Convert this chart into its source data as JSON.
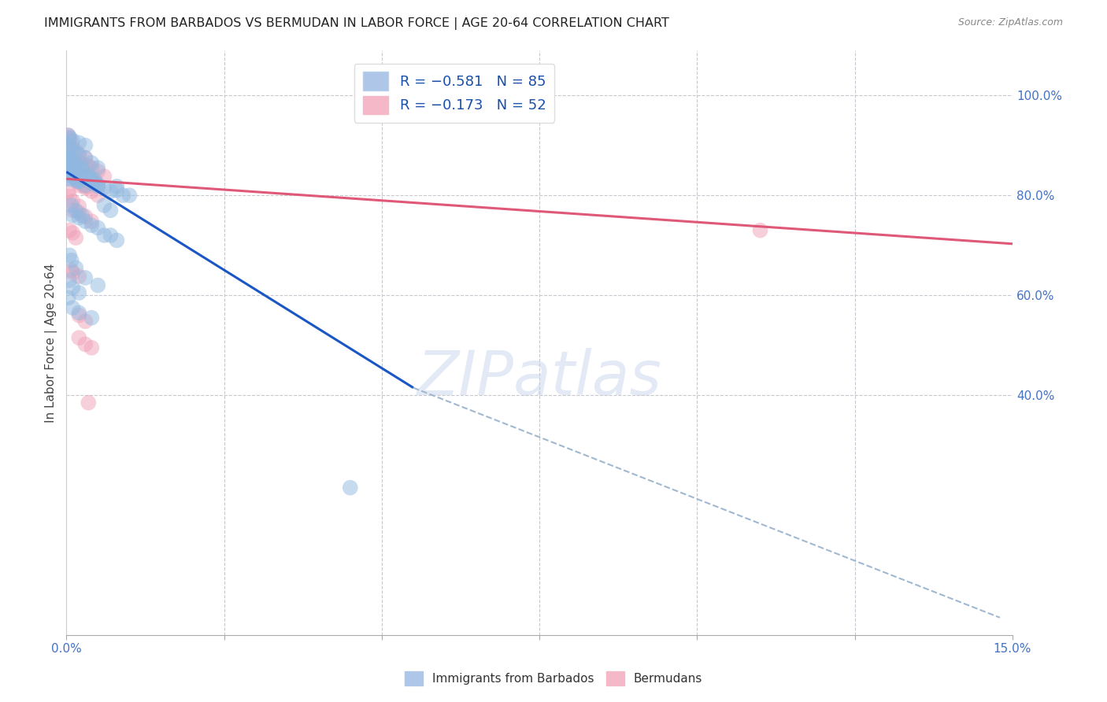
{
  "title": "IMMIGRANTS FROM BARBADOS VS BERMUDAN IN LABOR FORCE | AGE 20-64 CORRELATION CHART",
  "source": "Source: ZipAtlas.com",
  "ylabel": "In Labor Force | Age 20-64",
  "watermark": "ZIPatlas",
  "blue_scatter_x": [
    0.0002,
    0.0003,
    0.0004,
    0.0005,
    0.0006,
    0.0007,
    0.0008,
    0.0009,
    0.001,
    0.0012,
    0.0014,
    0.0016,
    0.0018,
    0.002,
    0.0022,
    0.0025,
    0.003,
    0.0035,
    0.004,
    0.0045,
    0.005,
    0.006,
    0.007,
    0.008,
    0.009,
    0.01,
    0.0003,
    0.0005,
    0.0008,
    0.001,
    0.0012,
    0.0015,
    0.002,
    0.0025,
    0.003,
    0.0035,
    0.004,
    0.0045,
    0.005,
    0.006,
    0.007,
    0.0004,
    0.0006,
    0.001,
    0.0014,
    0.002,
    0.003,
    0.004,
    0.005,
    0.0003,
    0.0005,
    0.001,
    0.002,
    0.003,
    0.0008,
    0.0015,
    0.0025,
    0.004,
    0.006,
    0.008,
    0.001,
    0.002,
    0.003,
    0.005,
    0.007,
    0.0005,
    0.0008,
    0.0015,
    0.003,
    0.005,
    0.0003,
    0.001,
    0.002,
    0.004,
    0.0005,
    0.001,
    0.002,
    0.045,
    0.0003,
    0.0006,
    0.002,
    0.005,
    0.008
  ],
  "blue_scatter_y": [
    0.855,
    0.86,
    0.87,
    0.84,
    0.865,
    0.858,
    0.85,
    0.852,
    0.84,
    0.845,
    0.838,
    0.832,
    0.828,
    0.83,
    0.84,
    0.855,
    0.82,
    0.84,
    0.835,
    0.825,
    0.82,
    0.815,
    0.808,
    0.81,
    0.8,
    0.8,
    0.88,
    0.875,
    0.87,
    0.865,
    0.86,
    0.862,
    0.855,
    0.85,
    0.84,
    0.835,
    0.825,
    0.83,
    0.818,
    0.78,
    0.77,
    0.9,
    0.895,
    0.89,
    0.885,
    0.88,
    0.875,
    0.865,
    0.855,
    0.92,
    0.915,
    0.91,
    0.905,
    0.9,
    0.78,
    0.77,
    0.76,
    0.74,
    0.72,
    0.71,
    0.76,
    0.755,
    0.748,
    0.735,
    0.72,
    0.68,
    0.67,
    0.655,
    0.635,
    0.62,
    0.595,
    0.575,
    0.565,
    0.555,
    0.63,
    0.615,
    0.605,
    0.215,
    0.835,
    0.832,
    0.828,
    0.822,
    0.818
  ],
  "pink_scatter_x": [
    0.0002,
    0.0003,
    0.0005,
    0.0007,
    0.001,
    0.0012,
    0.0015,
    0.002,
    0.0025,
    0.003,
    0.0035,
    0.004,
    0.005,
    0.006,
    0.0003,
    0.0005,
    0.0008,
    0.001,
    0.0015,
    0.002,
    0.003,
    0.0004,
    0.0006,
    0.001,
    0.0015,
    0.002,
    0.003,
    0.0003,
    0.0005,
    0.001,
    0.002,
    0.001,
    0.002,
    0.003,
    0.004,
    0.0005,
    0.001,
    0.0015,
    0.002,
    0.003,
    0.004,
    0.005,
    0.0008,
    0.001,
    0.002,
    0.11,
    0.002,
    0.003,
    0.002,
    0.003,
    0.004,
    0.0035
  ],
  "pink_scatter_y": [
    0.86,
    0.855,
    0.87,
    0.878,
    0.87,
    0.865,
    0.865,
    0.868,
    0.862,
    0.86,
    0.858,
    0.855,
    0.848,
    0.838,
    0.92,
    0.915,
    0.905,
    0.895,
    0.888,
    0.882,
    0.875,
    0.845,
    0.842,
    0.838,
    0.832,
    0.825,
    0.818,
    0.808,
    0.798,
    0.788,
    0.778,
    0.77,
    0.765,
    0.758,
    0.748,
    0.73,
    0.725,
    0.715,
    0.82,
    0.815,
    0.808,
    0.8,
    0.65,
    0.645,
    0.638,
    0.73,
    0.56,
    0.548,
    0.515,
    0.502,
    0.495,
    0.385
  ],
  "blue_line_x": [
    0.0,
    0.055
  ],
  "blue_line_y": [
    0.847,
    0.415
  ],
  "pink_line_x": [
    0.0,
    0.15
  ],
  "pink_line_y": [
    0.833,
    0.703
  ],
  "dashed_line_x": [
    0.055,
    0.148
  ],
  "dashed_line_y": [
    0.415,
    -0.045
  ],
  "xlim": [
    0.0,
    0.15
  ],
  "ylim": [
    -0.08,
    1.09
  ],
  "yticks": [
    1.0,
    0.8,
    0.6,
    0.4
  ],
  "yticklabels": [
    "100.0%",
    "80.0%",
    "60.0%",
    "40.0%"
  ],
  "xtick_positions": [
    0.0,
    0.025,
    0.05,
    0.075,
    0.1,
    0.125,
    0.15
  ],
  "xtick_labels": [
    "0.0%",
    "",
    "",
    "",
    "",
    "",
    "15.0%"
  ],
  "blue_color": "#90b8e0",
  "pink_color": "#f0a0b8",
  "blue_line_color": "#1a56c4",
  "pink_line_color": "#e05878",
  "dashed_color": "#a0b8d0",
  "axis_color": "#4472c4",
  "background_color": "#ffffff",
  "grid_color": "#c8c8d0",
  "title_fontsize": 11.5,
  "tick_fontsize": 11,
  "ylabel_fontsize": 11,
  "legend_fontsize": 13,
  "watermark_fontsize": 56,
  "scatter_size": 200,
  "scatter_alpha": 0.5
}
